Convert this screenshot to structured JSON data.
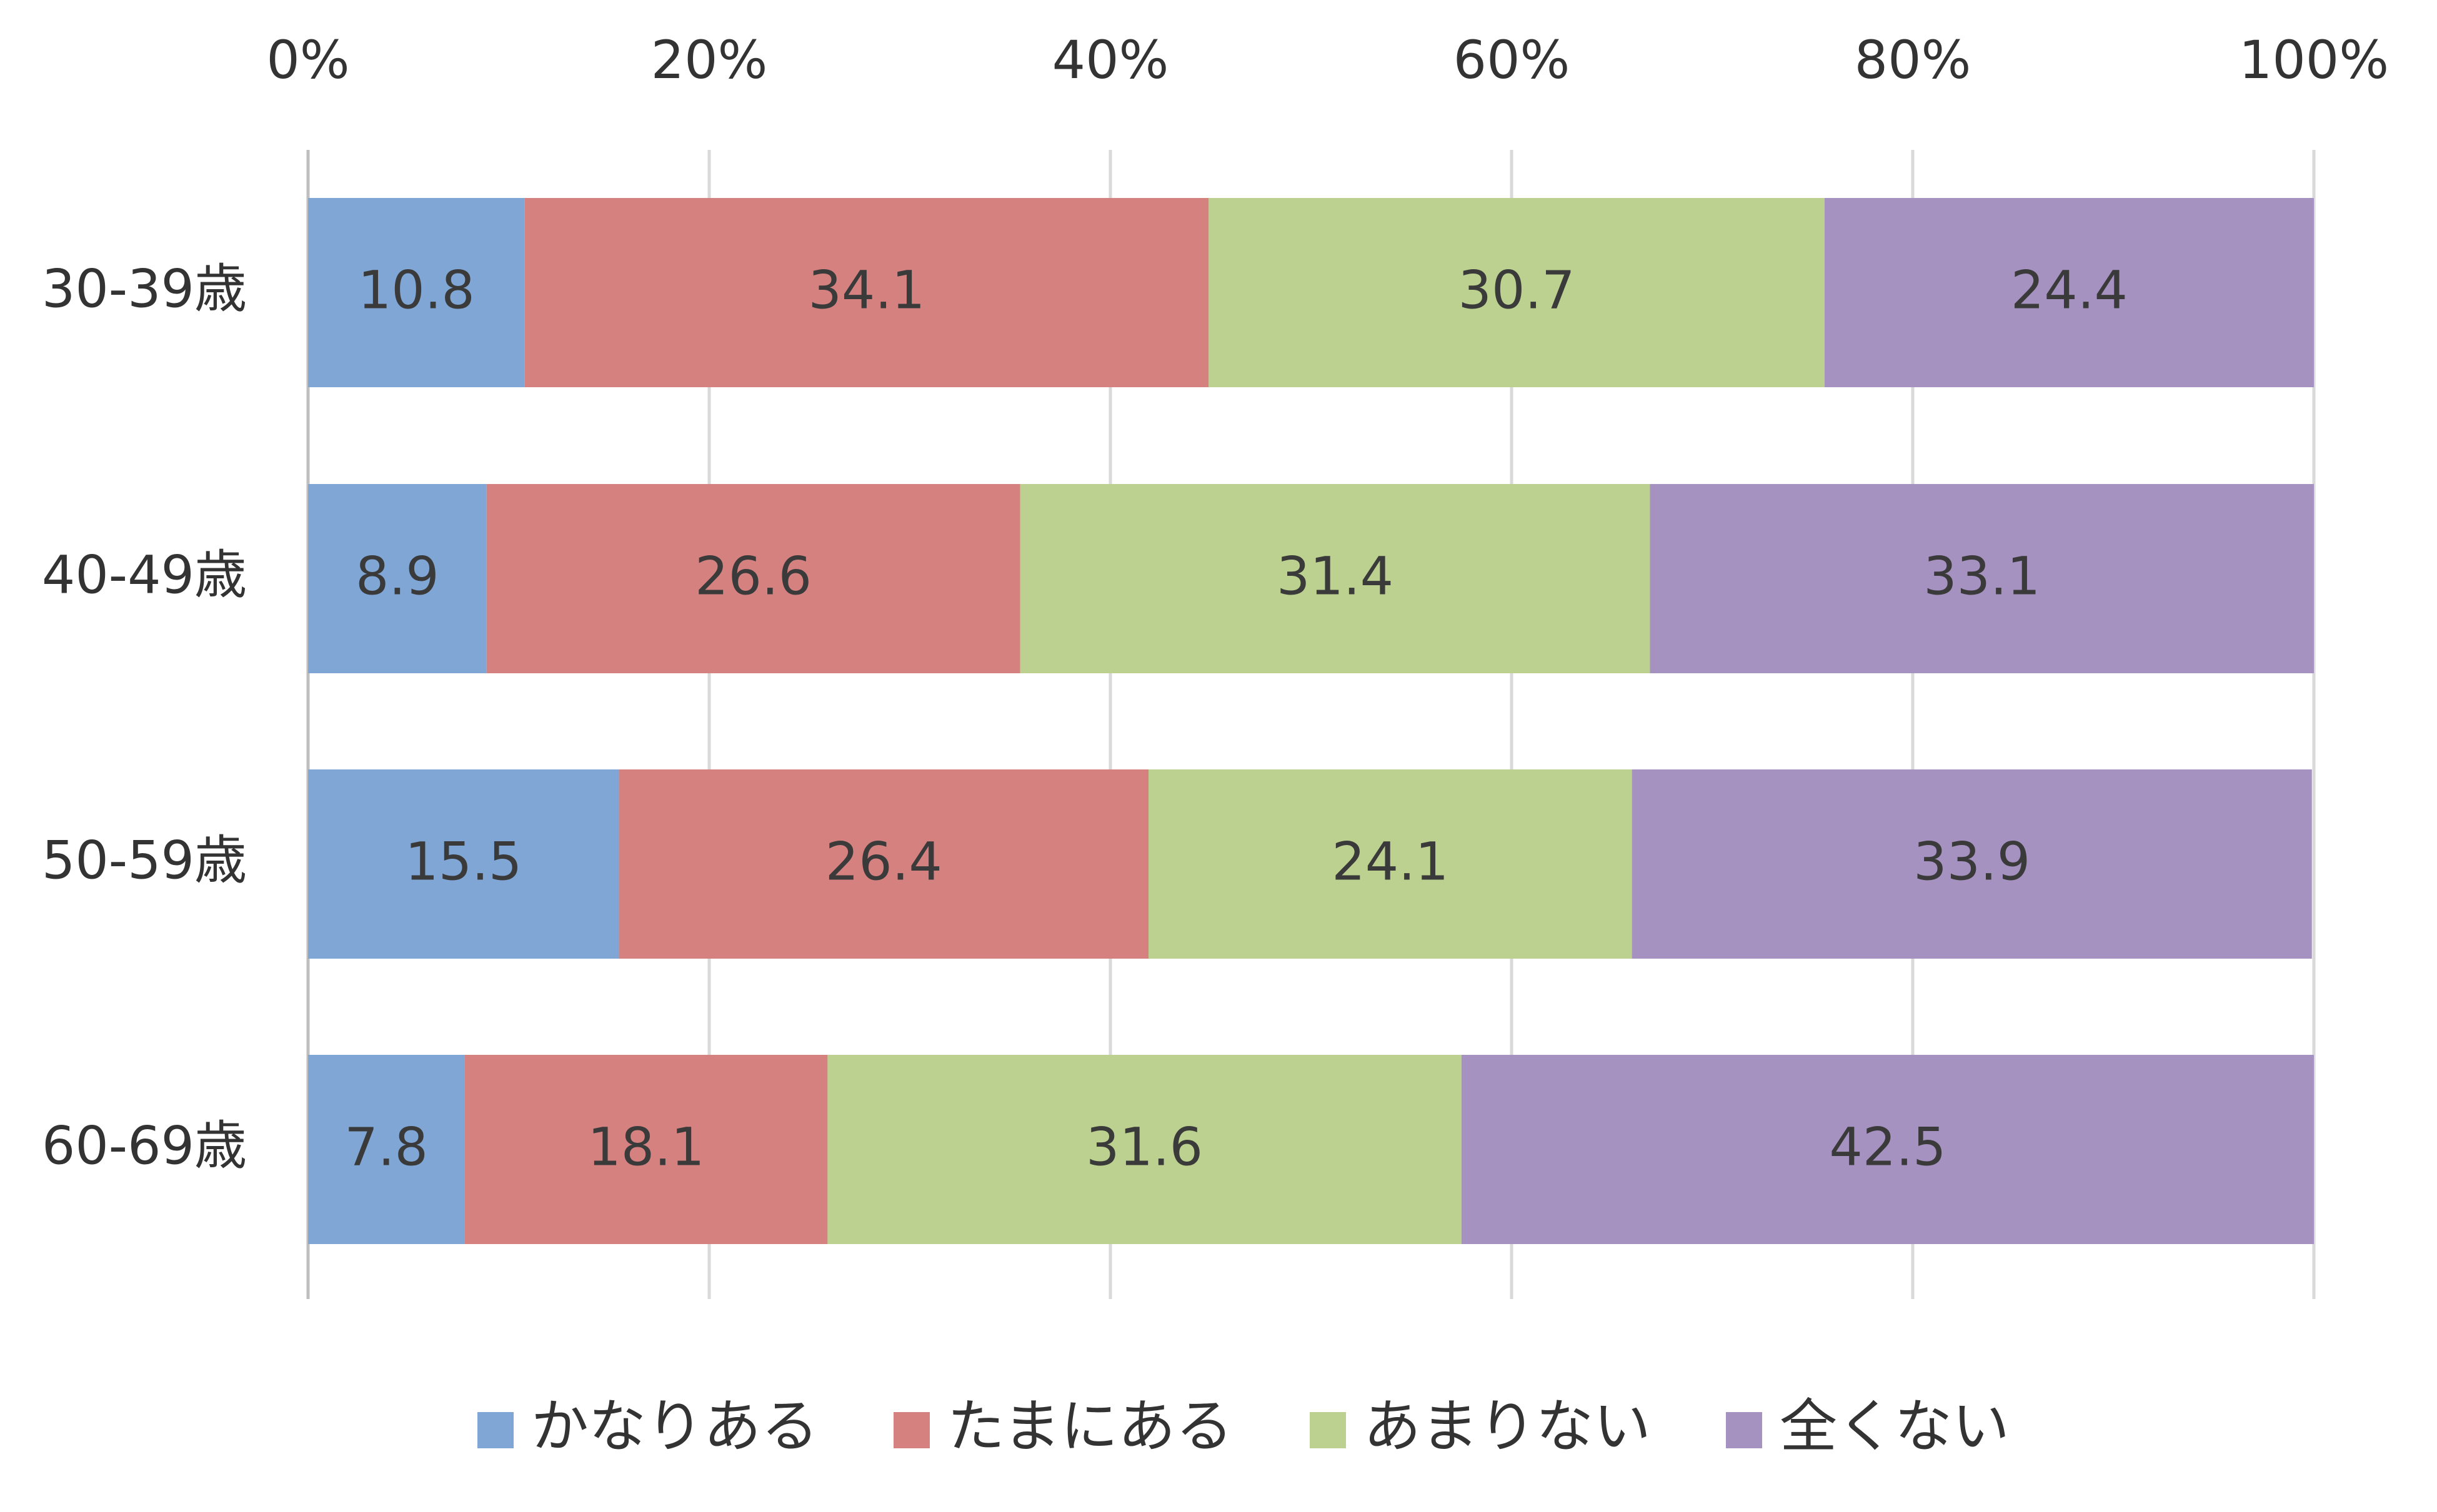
{
  "chart_data": {
    "type": "bar",
    "orientation": "horizontal",
    "stacked": true,
    "categories": [
      "30-39歳",
      "40-49歳",
      "50-59歳",
      "60-69歳"
    ],
    "series": [
      {
        "name": "かなりある",
        "color": "#7fa6d4",
        "values": [
          10.8,
          8.9,
          15.5,
          7.8
        ]
      },
      {
        "name": "たまにある",
        "color": "#d48180",
        "values": [
          34.1,
          26.6,
          26.4,
          18.1
        ]
      },
      {
        "name": "あまりない",
        "color": "#bcd18f",
        "values": [
          30.7,
          31.4,
          24.1,
          31.6
        ]
      },
      {
        "name": "全くない",
        "color": "#a692c1",
        "values": [
          24.4,
          33.1,
          33.9,
          42.5
        ]
      }
    ],
    "x_ticks": [
      "0%",
      "20%",
      "40%",
      "60%",
      "80%",
      "100%"
    ],
    "x_tick_values": [
      0,
      20,
      40,
      60,
      80,
      100
    ],
    "xlim": [
      0,
      100
    ],
    "x_axis_position": "top",
    "grid": true,
    "legend_position": "bottom"
  }
}
